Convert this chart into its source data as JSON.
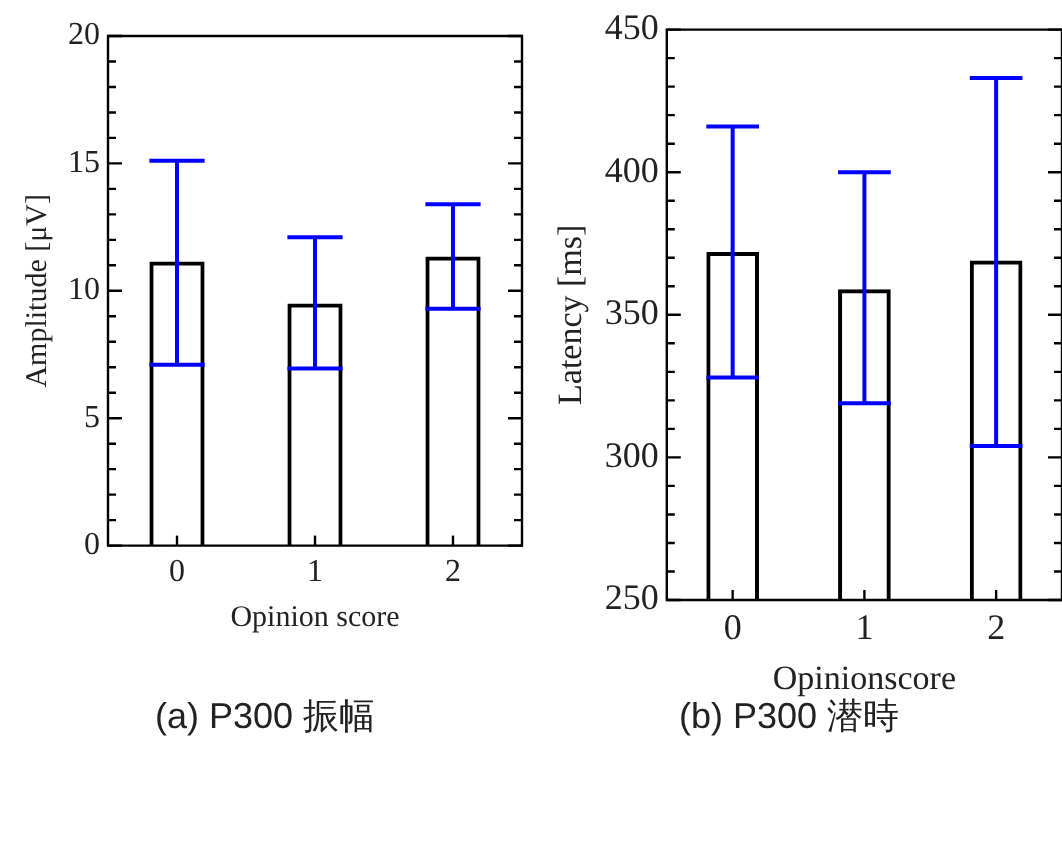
{
  "chart_data": [
    {
      "type": "bar",
      "title": "(a) P300 振幅",
      "xlabel": "Opinion score",
      "ylabel": "Amplitude [μV]",
      "categories": [
        "0",
        "1",
        "2"
      ],
      "values": [
        11.15,
        9.5,
        11.35
      ],
      "color": "#000000",
      "errors": [
        [
          7.1,
          15.1
        ],
        [
          6.95,
          12.1
        ],
        [
          9.3,
          13.4
        ]
      ],
      "ylim": [
        0,
        20
      ],
      "yticks": [
        0,
        {
          "value": 1,
          "label": null
        },
        {
          "value": 2,
          "label": null
        },
        {
          "value": 3,
          "label": null
        },
        {
          "value": 4,
          "label": null
        },
        5,
        {
          "value": 6,
          "label": null
        },
        {
          "value": 7,
          "label": null
        },
        {
          "value": 8,
          "label": null
        },
        {
          "value": 9,
          "label": null
        },
        10,
        {
          "value": 11,
          "label": null
        },
        {
          "value": 12,
          "label": null
        },
        {
          "value": 13,
          "label": null
        },
        {
          "value": 14,
          "label": null
        },
        15,
        {
          "value": 16,
          "label": null
        },
        {
          "value": 17,
          "label": null
        },
        {
          "value": 18,
          "label": null
        },
        {
          "value": 19,
          "label": null
        },
        20
      ],
      "grid": false,
      "legend": false
    },
    {
      "type": "bar",
      "title": "(b) P300 潜時",
      "xlabel": "Opinionscore",
      "ylabel": "Latency [ms]",
      "categories": [
        "0",
        "1",
        "2"
      ],
      "values": [
        372,
        359,
        369
      ],
      "color": "#000000",
      "errors": [
        [
          328,
          416
        ],
        [
          319,
          400
        ],
        [
          304,
          433
        ]
      ],
      "ylim": [
        250,
        450
      ],
      "yticks": [
        250,
        {
          "value": 260,
          "label": null
        },
        {
          "value": 270,
          "label": null
        },
        {
          "value": 280,
          "label": null
        },
        {
          "value": 290,
          "label": null
        },
        300,
        {
          "value": 310,
          "label": null
        },
        {
          "value": 320,
          "label": null
        },
        {
          "value": 330,
          "label": null
        },
        {
          "value": 340,
          "label": null
        },
        350,
        {
          "value": 360,
          "label": null
        },
        {
          "value": 370,
          "label": null
        },
        {
          "value": 380,
          "label": null
        },
        {
          "value": 390,
          "label": null
        },
        400,
        {
          "value": 410,
          "label": null
        },
        {
          "value": 420,
          "label": null
        },
        {
          "value": 430,
          "label": null
        },
        {
          "value": 440,
          "label": null
        },
        450
      ],
      "grid": false,
      "legend": false
    }
  ]
}
